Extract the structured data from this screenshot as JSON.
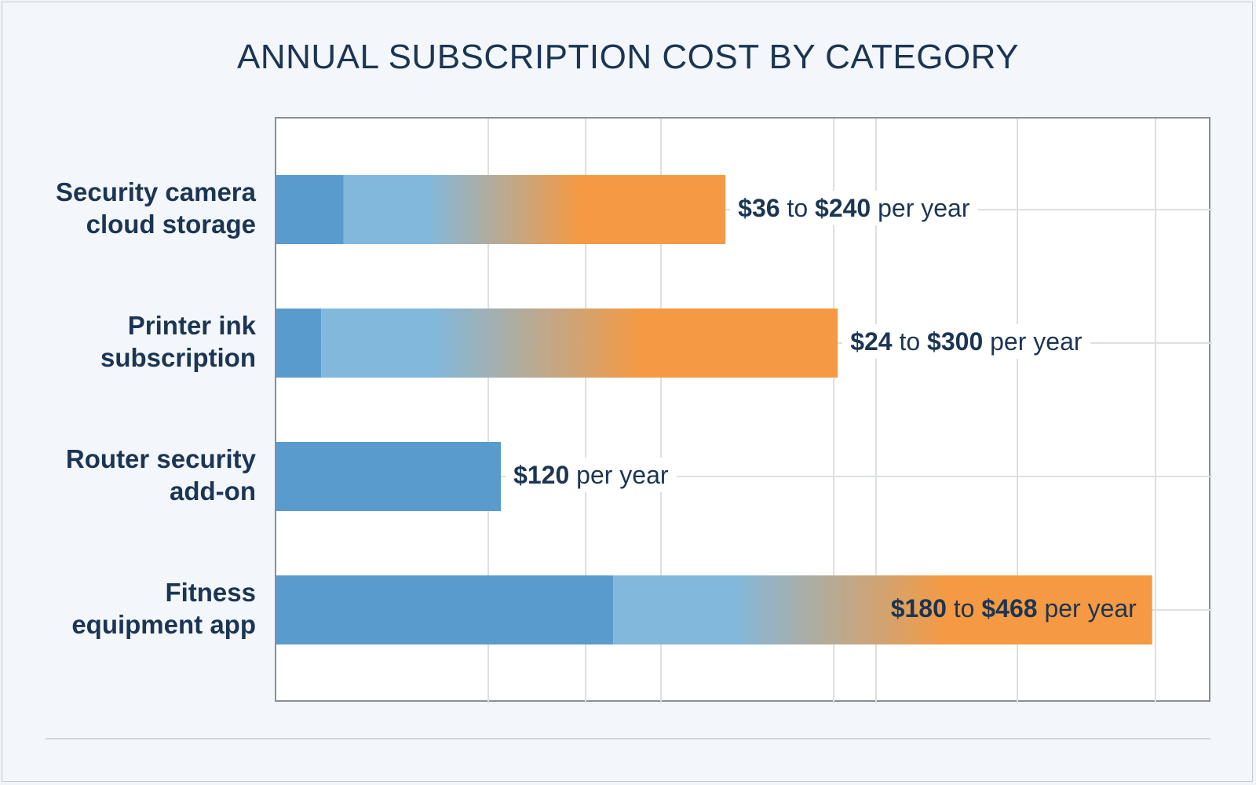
{
  "chart_data": {
    "type": "bar",
    "orientation": "horizontal",
    "title": "ANNUAL SUBSCRIPTION COST BY CATEGORY",
    "xlabel": "",
    "ylabel": "",
    "xlim": [
      0,
      500
    ],
    "grid": true,
    "categories": [
      "Security camera\ncloud storage",
      "Printer ink\nsubscription",
      "Router security\nadd-on",
      "Fitness\nequipment app"
    ],
    "ranges": [
      {
        "low": 36,
        "high": 240,
        "label_parts": [
          {
            "t": "$36",
            "b": true
          },
          {
            "t": " to ",
            "b": false
          },
          {
            "t": "$240",
            "b": true
          },
          {
            "t": " per year",
            "b": false
          }
        ]
      },
      {
        "low": 24,
        "high": 300,
        "label_parts": [
          {
            "t": "$24",
            "b": true
          },
          {
            "t": " to ",
            "b": false
          },
          {
            "t": "$300",
            "b": true
          },
          {
            "t": " per year",
            "b": false
          }
        ]
      },
      {
        "low": 120,
        "high": 120,
        "label_parts": [
          {
            "t": "$120",
            "b": true
          },
          {
            "t": " per year",
            "b": false
          }
        ]
      },
      {
        "low": 180,
        "high": 468,
        "label_parts": [
          {
            "t": "$180",
            "b": true
          },
          {
            "t": " to ",
            "b": false
          },
          {
            "t": "$468",
            "b": true
          },
          {
            "t": " per year",
            "b": false
          }
        ]
      }
    ],
    "colors": {
      "low_solid": "#5a9bcd",
      "light_blue": "#82b8dc",
      "orange": "#f59a42",
      "grid": "#dcdfe3",
      "text": "#1b3553"
    }
  }
}
